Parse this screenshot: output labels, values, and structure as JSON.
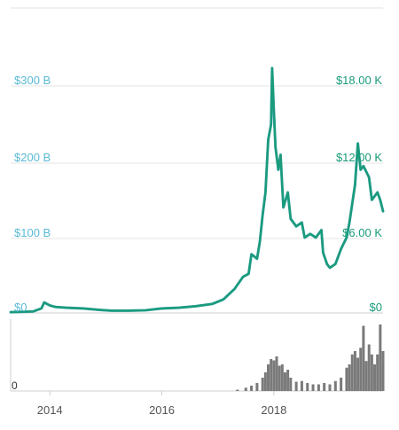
{
  "chart_data": {
    "type": "line",
    "x_ticks": [
      "2014",
      "2016",
      "2018"
    ],
    "left_axis": {
      "ticks": [
        "$0",
        "$100 B",
        "$200 B",
        "$300 B"
      ],
      "tick_values": [
        0,
        100,
        200,
        300
      ],
      "ylim": [
        0,
        340
      ],
      "color": "#5bbad5"
    },
    "right_axis": {
      "ticks": [
        "$0",
        "$6.00 K",
        "$12.00 K",
        "$18.00 K"
      ],
      "tick_values": [
        0,
        6000,
        12000,
        18000
      ],
      "ylim": [
        0,
        20400
      ],
      "color": "#1a9b7a"
    },
    "volume_axis": {
      "ticks": [
        "0"
      ],
      "color": "#333333"
    },
    "grid": true,
    "xlim": [
      2013.3,
      2019.95
    ],
    "series": [
      {
        "axis": "left",
        "color": "#4aa3d8",
        "x": [
          2013.3,
          2013.5,
          2013.7,
          2013.85,
          2013.9,
          2014.0,
          2014.1,
          2014.3,
          2014.6,
          2014.9,
          2015.1,
          2015.4,
          2015.7,
          2016.0,
          2016.3,
          2016.6,
          2016.9,
          2017.1,
          2017.3,
          2017.45,
          2017.55,
          2017.6,
          2017.7,
          2017.75,
          2017.8,
          2017.85,
          2017.9,
          2017.95,
          2017.97,
          2018.0,
          2018.03,
          2018.08,
          2018.12,
          2018.17,
          2018.25,
          2018.3,
          2018.4,
          2018.5,
          2018.55,
          2018.65,
          2018.75,
          2018.85,
          2018.88,
          2018.95,
          2019.0,
          2019.1,
          2019.2,
          2019.3,
          2019.35,
          2019.45,
          2019.5,
          2019.55,
          2019.6,
          2019.7,
          2019.75,
          2019.85,
          2019.9,
          2019.95
        ],
        "values": [
          1,
          1.5,
          2,
          6,
          14,
          10,
          8,
          7,
          6,
          4,
          3,
          3,
          3.5,
          6,
          7,
          9,
          12,
          18,
          32,
          48,
          52,
          78,
          72,
          95,
          130,
          160,
          230,
          250,
          325,
          270,
          220,
          190,
          210,
          140,
          160,
          125,
          115,
          120,
          100,
          105,
          100,
          110,
          80,
          65,
          60,
          65,
          85,
          100,
          120,
          170,
          225,
          190,
          195,
          180,
          150,
          160,
          150,
          135
        ]
      },
      {
        "axis": "right",
        "color": "#1a9b7a",
        "x": [
          2013.3,
          2013.5,
          2013.7,
          2013.85,
          2013.9,
          2014.0,
          2014.1,
          2014.3,
          2014.6,
          2014.9,
          2015.1,
          2015.4,
          2015.7,
          2016.0,
          2016.3,
          2016.6,
          2016.9,
          2017.1,
          2017.3,
          2017.45,
          2017.55,
          2017.6,
          2017.7,
          2017.75,
          2017.8,
          2017.85,
          2017.9,
          2017.95,
          2017.97,
          2018.0,
          2018.03,
          2018.08,
          2018.12,
          2018.17,
          2018.25,
          2018.3,
          2018.4,
          2018.5,
          2018.55,
          2018.65,
          2018.75,
          2018.85,
          2018.88,
          2018.95,
          2019.0,
          2019.1,
          2019.2,
          2019.3,
          2019.35,
          2019.45,
          2019.5,
          2019.55,
          2019.6,
          2019.7,
          2019.75,
          2019.85,
          2019.9,
          2019.95
        ],
        "values": [
          60,
          90,
          120,
          360,
          840,
          600,
          480,
          420,
          360,
          240,
          180,
          180,
          210,
          360,
          420,
          540,
          720,
          1080,
          1920,
          2880,
          3120,
          4680,
          4320,
          5700,
          7800,
          9600,
          13800,
          15000,
          19500,
          16200,
          13200,
          11400,
          12600,
          8400,
          9600,
          7500,
          6900,
          7200,
          6000,
          6300,
          6000,
          6600,
          4800,
          3900,
          3600,
          3900,
          5100,
          6000,
          7200,
          10200,
          13500,
          11400,
          11700,
          10800,
          9000,
          9600,
          9000,
          8100
        ]
      }
    ],
    "volume": {
      "x": [
        2017.35,
        2017.5,
        2017.6,
        2017.7,
        2017.8,
        2017.85,
        2017.9,
        2017.95,
        2018.0,
        2018.05,
        2018.1,
        2018.15,
        2018.2,
        2018.25,
        2018.3,
        2018.4,
        2018.5,
        2018.6,
        2018.7,
        2018.8,
        2018.9,
        2019.0,
        2019.1,
        2019.2,
        2019.3,
        2019.35,
        2019.4,
        2019.45,
        2019.5,
        2019.55,
        2019.6,
        2019.65,
        2019.7,
        2019.75,
        2019.8,
        2019.85,
        2019.9,
        2019.95
      ],
      "values": [
        0.02,
        0.05,
        0.08,
        0.12,
        0.2,
        0.28,
        0.4,
        0.48,
        0.46,
        0.52,
        0.38,
        0.4,
        0.28,
        0.32,
        0.2,
        0.14,
        0.15,
        0.12,
        0.1,
        0.1,
        0.12,
        0.1,
        0.15,
        0.2,
        0.35,
        0.4,
        0.55,
        0.6,
        0.5,
        0.65,
        0.98,
        0.45,
        0.7,
        0.55,
        0.4,
        0.55,
        1.0,
        0.6
      ]
    }
  }
}
